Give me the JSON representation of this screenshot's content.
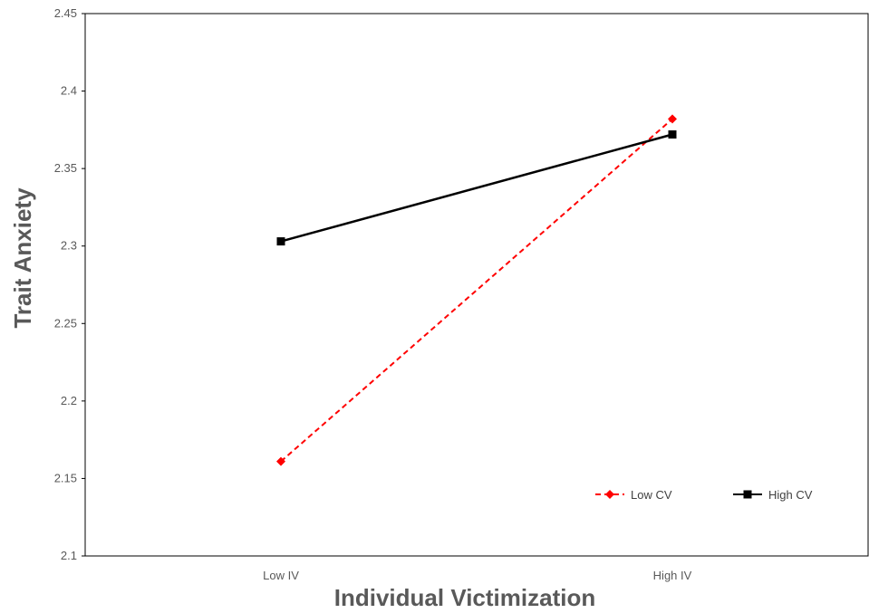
{
  "chart_data": {
    "type": "line",
    "title": "",
    "xlabel": "Individual Victimization",
    "ylabel": "Trait Anxiety",
    "categories": [
      "Low IV",
      "High IV"
    ],
    "ylim": [
      2.1,
      2.45
    ],
    "yticks": [
      2.1,
      2.15,
      2.2,
      2.25,
      2.3,
      2.35,
      2.4,
      2.45
    ],
    "ytick_labels": [
      "2.1",
      "2.15",
      "2.2",
      "2.25",
      "2.3",
      "2.35",
      "2.4",
      "2.45"
    ],
    "grid": false,
    "legend_position": "bottom-right",
    "series": [
      {
        "name": "Low CV",
        "values": [
          2.161,
          2.382
        ],
        "color": "#ff0000",
        "dash": "dashed",
        "marker": "diamond"
      },
      {
        "name": "High CV",
        "values": [
          2.303,
          2.372
        ],
        "color": "#000000",
        "dash": "solid",
        "marker": "square"
      }
    ]
  }
}
